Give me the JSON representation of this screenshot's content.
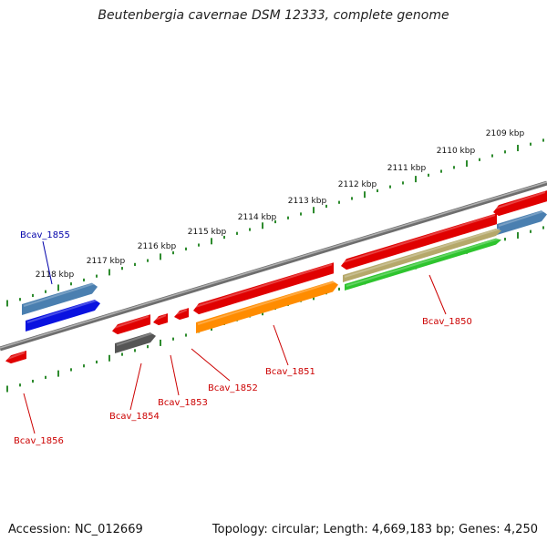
{
  "title": "Beutenbergia cavernae DSM 12333, complete genome",
  "footer": {
    "accession": "Accession: NC_012669",
    "summary": "Topology: circular; Length: 4,669,183 bp; Genes: 4,250"
  },
  "colors": {
    "backbone": "#8a8a8a",
    "tick": "#2e8b2e",
    "gene_red": "#e00000",
    "gene_blue": "#0a12e0",
    "gene_steelblue": "#4a7fb0",
    "gene_orange": "#ff8c00",
    "gene_khaki": "#b5a86a",
    "gene_green": "#2ec42e",
    "gene_gray": "#555555",
    "label_red": "#cc0000",
    "label_blue": "#0000aa"
  },
  "ruler_labels": [
    {
      "kbp": 2109,
      "text": "2109 kbp"
    },
    {
      "kbp": 2110,
      "text": "2110 kbp"
    },
    {
      "kbp": 2111,
      "text": "2111 kbp"
    },
    {
      "kbp": 2112,
      "text": "2112 kbp"
    },
    {
      "kbp": 2113,
      "text": "2113 kbp"
    },
    {
      "kbp": 2114,
      "text": "2114 kbp"
    },
    {
      "kbp": 2115,
      "text": "2115 kbp"
    },
    {
      "kbp": 2116,
      "text": "2116 kbp"
    },
    {
      "kbp": 2117,
      "text": "2117 kbp"
    },
    {
      "kbp": 2118,
      "text": "2118 kbp"
    }
  ],
  "genes": [
    {
      "id": "Bcav_1850",
      "label": "Bcav_1850",
      "strand": "reverse"
    },
    {
      "id": "Bcav_1851",
      "label": "Bcav_1851",
      "strand": "reverse"
    },
    {
      "id": "Bcav_1852",
      "label": "Bcav_1852",
      "strand": "reverse"
    },
    {
      "id": "Bcav_1853",
      "label": "Bcav_1853",
      "strand": "reverse"
    },
    {
      "id": "Bcav_1854",
      "label": "Bcav_1854",
      "strand": "reverse"
    },
    {
      "id": "Bcav_1855",
      "label": "Bcav_1855",
      "strand": "forward"
    },
    {
      "id": "Bcav_1856",
      "label": "Bcav_1856",
      "strand": "reverse"
    }
  ]
}
